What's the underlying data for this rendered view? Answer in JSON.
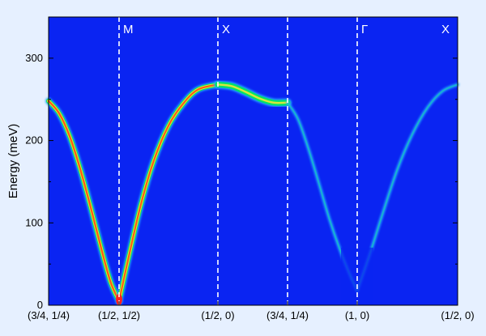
{
  "chart_data": {
    "type": "heatmap",
    "title": "",
    "xlabel": "",
    "ylabel": "Energy (meV)",
    "ylim": [
      0,
      350
    ],
    "yticks": [
      0,
      100,
      200,
      300
    ],
    "x_path_ticks": [
      "(3/4, 1/4)",
      "(1/2, 1/2)",
      "(1/2, 0)",
      "(3/4, 1/4)",
      "(1, 0)",
      "(1/2, 0)"
    ],
    "symmetry_points": [
      {
        "label": "M",
        "at_tick": 1
      },
      {
        "label": "X",
        "at_tick": 2
      },
      {
        "label": "",
        "at_tick": 3
      },
      {
        "label": "Γ",
        "at_tick": 4
      },
      {
        "label": "X",
        "at_tick": 5
      }
    ],
    "grid": false,
    "colors": {
      "background": "#0a24f2",
      "low": "#22a8ff",
      "mid": "#00e06a",
      "high_a": "#d4e83a",
      "high_b": "#ff5a14",
      "peak": "#ff1e1e",
      "dashed_line": "#ffffff"
    },
    "series": [
      {
        "segment": 0,
        "points": [
          [
            0.0,
            248
          ],
          [
            0.15,
            233
          ],
          [
            0.3,
            205
          ],
          [
            0.45,
            165
          ],
          [
            0.6,
            118
          ],
          [
            0.75,
            68
          ],
          [
            0.88,
            28
          ],
          [
            1.0,
            5
          ]
        ]
      },
      {
        "segment": 1,
        "points": [
          [
            0.0,
            5
          ],
          [
            0.1,
            60
          ],
          [
            0.22,
            122
          ],
          [
            0.35,
            175
          ],
          [
            0.5,
            218
          ],
          [
            0.65,
            245
          ],
          [
            0.8,
            262
          ],
          [
            1.0,
            268
          ]
        ]
      },
      {
        "segment": 2,
        "points": [
          [
            0.0,
            268
          ],
          [
            0.2,
            266
          ],
          [
            0.4,
            259
          ],
          [
            0.6,
            251
          ],
          [
            0.8,
            246
          ],
          [
            1.0,
            246
          ]
        ]
      },
      {
        "segment": 3,
        "points": [
          [
            0.0,
            246
          ],
          [
            0.15,
            226
          ],
          [
            0.3,
            190
          ],
          [
            0.45,
            148
          ],
          [
            0.6,
            105
          ],
          [
            0.75,
            68
          ],
          [
            0.9,
            36
          ],
          [
            1.0,
            18
          ]
        ]
      },
      {
        "segment": 4,
        "points": [
          [
            0.0,
            18
          ],
          [
            0.12,
            60
          ],
          [
            0.25,
            110
          ],
          [
            0.4,
            165
          ],
          [
            0.55,
            208
          ],
          [
            0.7,
            240
          ],
          [
            0.85,
            260
          ],
          [
            1.0,
            268
          ]
        ]
      }
    ]
  }
}
